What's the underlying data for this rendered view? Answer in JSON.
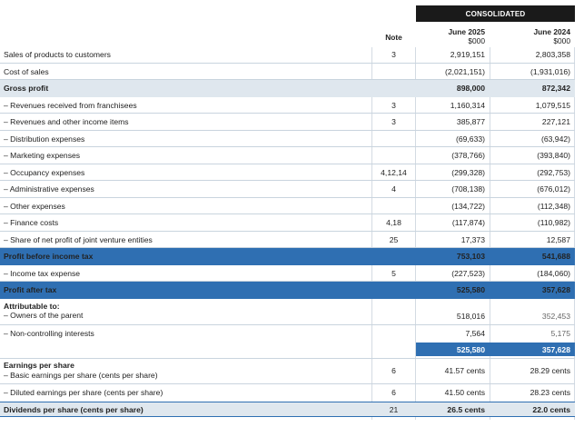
{
  "header": {
    "consolidated": "CONSOLIDATED",
    "note": "Note",
    "col1_year": "June 2025",
    "col1_unit": "$000",
    "col2_year": "June 2024",
    "col2_unit": "$000"
  },
  "rows": [
    {
      "label": "Sales of products to customers",
      "note": "3",
      "v1": "2,919,151",
      "v2": "2,803,358"
    },
    {
      "label": "Cost of sales",
      "note": "",
      "v1": "(2,021,151)",
      "v2": "(1,931,016)"
    },
    {
      "label": "Gross profit",
      "note": "",
      "v1": "898,000",
      "v2": "872,342"
    },
    {
      "label": "– Revenues received from franchisees",
      "note": "3",
      "v1": "1,160,314",
      "v2": "1,079,515"
    },
    {
      "label": "– Revenues and other income items",
      "note": "3",
      "v1": "385,877",
      "v2": "227,121"
    },
    {
      "label": "– Distribution expenses",
      "note": "",
      "v1": "(69,633)",
      "v2": "(63,942)"
    },
    {
      "label": "– Marketing expenses",
      "note": "",
      "v1": "(378,766)",
      "v2": "(393,840)"
    },
    {
      "label": "– Occupancy expenses",
      "note": "4,12,14",
      "v1": "(299,328)",
      "v2": "(292,753)"
    },
    {
      "label": "– Administrative expenses",
      "note": "4",
      "v1": "(708,138)",
      "v2": "(676,012)"
    },
    {
      "label": "– Other expenses",
      "note": "",
      "v1": "(134,722)",
      "v2": "(112,348)"
    },
    {
      "label": "– Finance costs",
      "note": "4,18",
      "v1": "(117,874)",
      "v2": "(110,982)"
    },
    {
      "label": "– Share of net profit of joint venture entities",
      "note": "25",
      "v1": "17,373",
      "v2": "12,587"
    },
    {
      "label": "Profit before income tax",
      "note": "",
      "v1": "753,103",
      "v2": "541,688"
    },
    {
      "label": "– Income tax expense",
      "note": "5",
      "v1": "(227,523)",
      "v2": "(184,060)"
    },
    {
      "label": "Profit after tax",
      "note": "",
      "v1": "525,580",
      "v2": "357,628"
    }
  ],
  "attributable": {
    "heading": "Attributable to:",
    "owners_label": "– Owners of the parent",
    "owners_v1": "518,016",
    "owners_v2": "352,453",
    "nci_label": "– Non-controlling interests",
    "nci_v1": "7,564",
    "nci_v2": "5,175",
    "total_v1": "525,580",
    "total_v2": "357,628"
  },
  "eps": {
    "heading": "Earnings per share",
    "basic_label": "– Basic earnings per share (cents per share)",
    "basic_note": "6",
    "basic_v1": "41.57 cents",
    "basic_v2": "28.29 cents",
    "diluted_label": "– Diluted earnings per share (cents per share)",
    "diluted_note": "6",
    "diluted_v1": "41.50 cents",
    "diluted_v2": "28.23 cents",
    "div_label": "Dividends per share (cents per share)",
    "div_note": "21",
    "div_v1": "26.5 cents",
    "div_v2": "22.0 cents"
  },
  "colors": {
    "blue": "#2f6fb2",
    "light": "#dfe7ee",
    "black": "#1a1a1a"
  }
}
